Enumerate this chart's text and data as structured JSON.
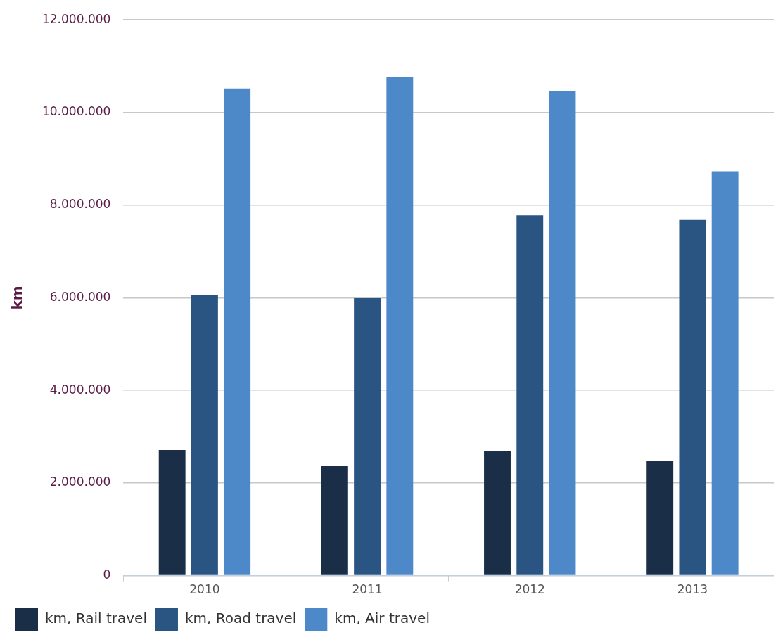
{
  "chart_data": {
    "type": "bar",
    "ylabel": "km",
    "categories": [
      "2010",
      "2011",
      "2012",
      "2013"
    ],
    "series": [
      {
        "name": "km, Rail travel",
        "color": "#1a2e48",
        "values": [
          2710000,
          2370000,
          2690000,
          2470000
        ]
      },
      {
        "name": "km, Road travel",
        "color": "#2a5582",
        "values": [
          6060000,
          5990000,
          7780000,
          7680000
        ]
      },
      {
        "name": "km, Air travel",
        "color": "#4d88c8",
        "values": [
          10520000,
          10770000,
          10470000,
          8730000
        ]
      }
    ],
    "ylim": [
      0,
      12000000
    ],
    "yticks": [
      {
        "value": 0,
        "label": "0"
      },
      {
        "value": 2000000,
        "label": "2.000.000"
      },
      {
        "value": 4000000,
        "label": "4.000.000"
      },
      {
        "value": 6000000,
        "label": "6.000.000"
      },
      {
        "value": 8000000,
        "label": "8.000.000"
      },
      {
        "value": 10000000,
        "label": "10.000.000"
      },
      {
        "value": 12000000,
        "label": "12.000.000"
      }
    ],
    "grid": "y",
    "legend": "bottom"
  }
}
